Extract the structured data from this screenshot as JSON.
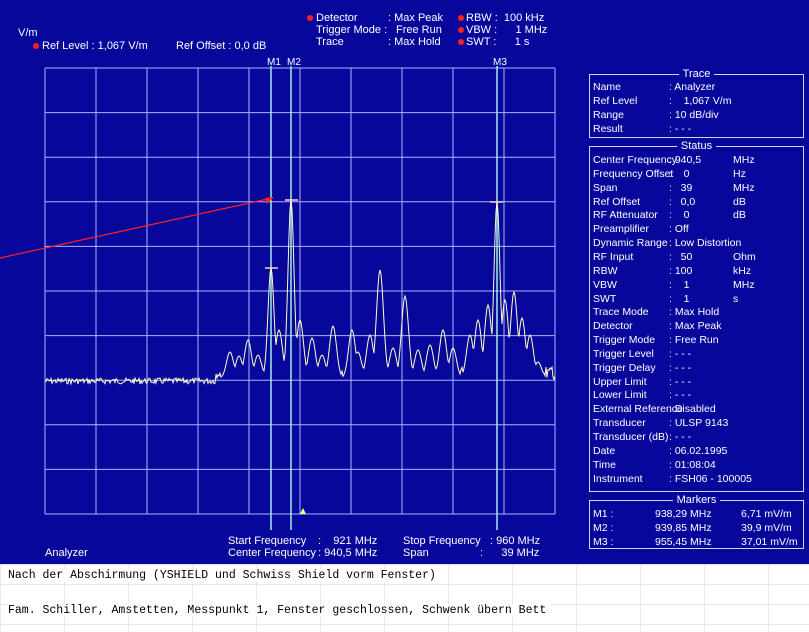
{
  "header": {
    "unit": "V/m",
    "ref_level": "Ref Level : 1,067 V/m",
    "ref_offset": "Ref Offset : 0,0 dB",
    "detector_label": "Detector",
    "detector_value": ": Max Peak",
    "trigger_label": "Trigger Mode :",
    "trigger_value": "Free Run",
    "trace_label": "Trace",
    "trace_value": ": Max Hold",
    "rbw": "RBW :  100 kHz",
    "vbw": "VBW :      1 MHz",
    "swt": "SWT :      1 s"
  },
  "markers_top": [
    "M1",
    "M2",
    "M3"
  ],
  "footer": {
    "start_label": "Start Frequency",
    "start_value": ":    921 MHz",
    "center_label": "Center Frequency",
    "center_value": ": 940,5 MHz",
    "stop_label": "Stop Frequency",
    "stop_value": ": 960 MHz",
    "span_label": "Span",
    "span_value": ":      39 MHz",
    "window_label": "Analyzer"
  },
  "trace_panel": {
    "title": "Trace",
    "rows": [
      {
        "k": "Name",
        "v": ": Analyzer"
      },
      {
        "k": "Ref Level",
        "v": ":    1,067 V/m"
      },
      {
        "k": "Range",
        "v": ": 10 dB/div"
      },
      {
        "k": "Result",
        "v": ": - - -"
      }
    ]
  },
  "status_panel": {
    "title": "Status",
    "rows": [
      {
        "k": "Center Frequency",
        "v": ": 940,5",
        "u": "MHz"
      },
      {
        "k": "Frequency Offset",
        "v": ":    0",
        "u": "Hz"
      },
      {
        "k": "Span",
        "v": ":   39",
        "u": "MHz"
      },
      {
        "k": "Ref Offset",
        "v": ":   0,0",
        "u": "dB"
      },
      {
        "k": "RF Attenuator",
        "v": ":    0",
        "u": "dB"
      },
      {
        "k": "Preamplifier",
        "v": ": Off",
        "u": ""
      },
      {
        "k": "Dynamic Range",
        "v": ": Low Distortion",
        "u": ""
      },
      {
        "k": "RF Input",
        "v": ":   50",
        "u": "Ohm"
      },
      {
        "k": "RBW",
        "v": ": 100",
        "u": "kHz"
      },
      {
        "k": "VBW",
        "v": ":    1",
        "u": "MHz"
      },
      {
        "k": "SWT",
        "v": ":    1",
        "u": "s"
      },
      {
        "k": "Trace Mode",
        "v": ": Max Hold",
        "u": ""
      },
      {
        "k": "Detector",
        "v": ": Max Peak",
        "u": ""
      },
      {
        "k": "Trigger Mode",
        "v": ": Free Run",
        "u": ""
      },
      {
        "k": "Trigger Level",
        "v": ": - - -",
        "u": ""
      },
      {
        "k": "Trigger Delay",
        "v": ": - - -",
        "u": ""
      },
      {
        "k": "Upper Limit",
        "v": ": - - -",
        "u": ""
      },
      {
        "k": "Lower Limit",
        "v": ": - - -",
        "u": ""
      },
      {
        "k": "External Reference",
        "v": ": Disabled",
        "u": ""
      },
      {
        "k": "Transducer",
        "v": ": ULSP 9143",
        "u": ""
      },
      {
        "k": "Transducer (dB)",
        "v": ": - - -",
        "u": ""
      },
      {
        "k": "Date",
        "v": ": 06.02.1995",
        "u": ""
      },
      {
        "k": "Time",
        "v": ": 01:08:04",
        "u": ""
      },
      {
        "k": "Instrument",
        "v": ": FSH06 - 100005",
        "u": ""
      }
    ]
  },
  "markers_panel": {
    "title": "Markers",
    "rows": [
      {
        "k": "M1 :",
        "f": "938,29 MHz",
        "a": "6,71 mV/m"
      },
      {
        "k": "M2 :",
        "f": "939,85 MHz",
        "a": "39,9 mV/m"
      },
      {
        "k": "M3 :",
        "f": "955,45 MHz",
        "a": "37,01 mV/m"
      }
    ]
  },
  "comments": [
    "Nach der Abschirmung (YSHIELD und Schwiss Shield vorm Fenster)",
    "Fam. Schiller, Amstetten, Messpunkt 1, Fenster geschlossen, Schwenk übern Bett"
  ],
  "colors": {
    "background": "#07079c",
    "grid": "#aab4ff",
    "trace": "#ffffc8",
    "marker_line": "#9ff0ea",
    "annotation_arrow": "#ff2020"
  }
}
